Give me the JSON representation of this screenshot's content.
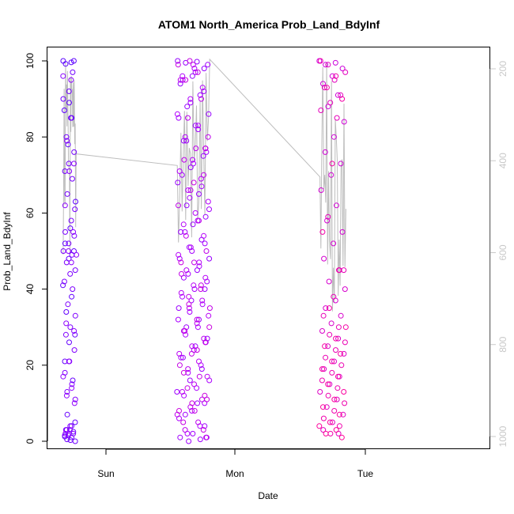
{
  "chart_data": {
    "type": "scatter",
    "title": "ATOM1 North_America Prob_Land_BdyInf",
    "xlabel": "Date",
    "ylabel": "Prob_Land_BdyInf",
    "x_ticks": [
      "Sun",
      "Mon",
      "Tue"
    ],
    "y_ticks": [
      "0",
      "20",
      "40",
      "60",
      "80",
      "100"
    ],
    "ylim": [
      0,
      100
    ],
    "y2_ticks": [
      "200",
      "400",
      "600",
      "800",
      "1000"
    ],
    "y2lim": [
      1000,
      150
    ],
    "grid": false,
    "colors": {
      "early": "#5a00ff",
      "mid": "#b000ff",
      "late": "#ff0099",
      "trace": "#bdbdbd",
      "secondary_axis": "#c8c8c8"
    },
    "clusters": [
      {
        "day_offset_start": -0.33,
        "day_offset_end": -0.23,
        "values": [
          100,
          99.6,
          99.2,
          100,
          89,
          87,
          85,
          78,
          63,
          56,
          52,
          50,
          48,
          41,
          38,
          34,
          28,
          26,
          21,
          16,
          7,
          5,
          4,
          3,
          2.5,
          2,
          1.5,
          1,
          0.5,
          0,
          0.3,
          1.2,
          97,
          92,
          90,
          85,
          80,
          76,
          73,
          71,
          69,
          65,
          61,
          58,
          55,
          54,
          52,
          50,
          49,
          47,
          45,
          44,
          42,
          40,
          36,
          33,
          30,
          28,
          24,
          21,
          18,
          15,
          13,
          11,
          4,
          3,
          2,
          1.5,
          96,
          95,
          79,
          73,
          71,
          62,
          55,
          50,
          49,
          47,
          31,
          29,
          21,
          17,
          14,
          12,
          10,
          3,
          2
        ]
      },
      {
        "day_offset_start": 0.55,
        "day_offset_end": 0.8,
        "values": [
          100,
          99.8,
          99.5,
          98,
          96,
          94,
          91,
          88,
          86,
          83,
          79,
          75,
          72,
          68,
          65,
          62,
          59,
          57,
          55,
          53,
          51,
          48,
          45,
          43,
          40,
          37,
          35,
          32,
          30,
          27,
          25,
          22,
          19,
          16,
          13,
          10,
          7,
          4,
          2,
          1,
          0.5,
          0,
          99,
          97,
          95,
          92,
          89,
          85,
          82,
          79,
          76,
          73,
          70,
          67,
          64,
          61,
          58,
          55,
          52,
          50,
          48,
          46,
          44,
          42,
          40,
          38,
          36,
          34,
          32,
          30,
          28,
          26,
          24,
          22,
          20,
          18,
          16,
          14,
          12,
          10,
          8,
          6,
          4,
          2,
          1,
          98,
          96,
          93,
          90,
          86,
          83,
          80,
          77,
          74,
          71,
          69,
          66,
          63,
          60,
          57,
          54,
          51,
          49,
          47,
          45,
          43,
          41,
          39,
          37,
          35,
          33,
          31,
          29,
          27,
          25,
          23,
          21,
          19,
          17,
          15,
          13,
          11,
          9,
          7,
          5,
          3,
          1,
          99,
          95,
          90,
          85,
          80,
          77,
          74,
          70,
          66,
          62,
          58,
          54,
          50,
          47,
          44,
          41,
          38,
          35,
          32,
          29,
          26,
          23,
          20,
          17,
          14,
          11,
          8,
          5,
          3,
          100,
          99,
          97,
          95,
          77,
          68,
          47,
          40,
          36,
          30,
          24,
          18,
          12,
          10,
          8
        ]
      },
      {
        "day_offset_start": 1.65,
        "day_offset_end": 1.85,
        "values": [
          100,
          99.5,
          99,
          98,
          96,
          94,
          91,
          88,
          84,
          80,
          76,
          73,
          70,
          66,
          62,
          58,
          55,
          52,
          48,
          45,
          42,
          40,
          37,
          35,
          33,
          31,
          29,
          27,
          25,
          23,
          21,
          19,
          17,
          15,
          13,
          11,
          9,
          7,
          5,
          3,
          2,
          99,
          97,
          95,
          93,
          91,
          89,
          87,
          85,
          59,
          45,
          38,
          33,
          30,
          28,
          26,
          24,
          22,
          20,
          18,
          16,
          14,
          12,
          10,
          8,
          6,
          4,
          2,
          100,
          96,
          93,
          90,
          73,
          55,
          45,
          35,
          30,
          27,
          25,
          23,
          21,
          19,
          17,
          15,
          13,
          11,
          9,
          7,
          5,
          4,
          3,
          2,
          1
        ]
      }
    ]
  }
}
